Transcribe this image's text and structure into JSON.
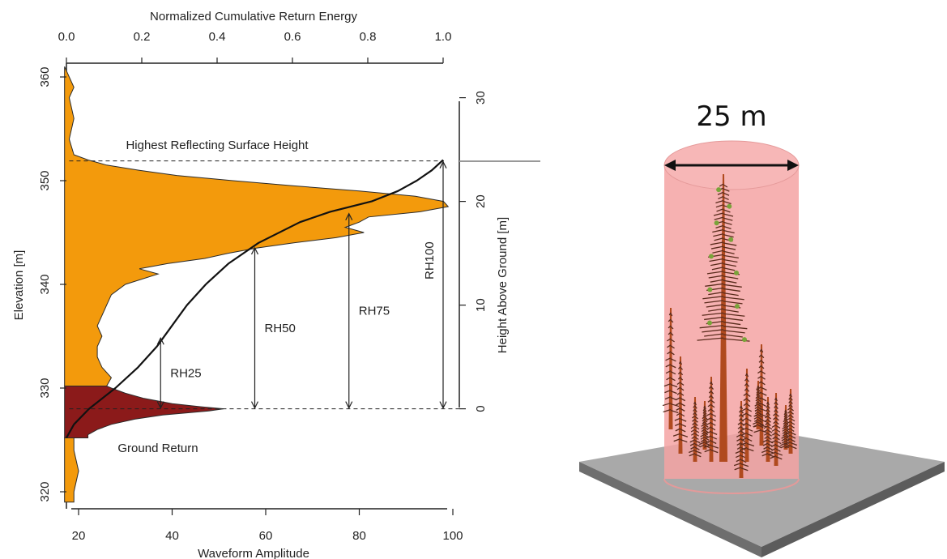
{
  "chart_data": {
    "type": "area",
    "top_axis": {
      "label": "Normalized Cumulative Return Energy",
      "range": [
        0.0,
        1.0
      ],
      "ticks": [
        "0.0",
        "0.2",
        "0.4",
        "0.6",
        "0.8",
        "1.0"
      ]
    },
    "bottom_axis": {
      "label": "Waveform Amplitude",
      "range": [
        20,
        100
      ],
      "ticks": [
        "20",
        "40",
        "60",
        "80",
        "100"
      ]
    },
    "left_axis": {
      "label": "Elevation [m]",
      "range": [
        319,
        361
      ],
      "ticks": [
        "320",
        "330",
        "340",
        "350",
        "360"
      ]
    },
    "right_axis": {
      "label": "Height Above Ground [m]",
      "range": [
        0,
        30
      ],
      "ticks": [
        "0",
        "10",
        "20",
        "30"
      ]
    },
    "ground_elevation": 328,
    "canopy_waveform": {
      "elevation": [
        361,
        359,
        358,
        356,
        354,
        352.5,
        352,
        351.5,
        351,
        350.5,
        350,
        349.5,
        349,
        348.5,
        348,
        347.5,
        347,
        346.5,
        346,
        345.5,
        345,
        344.5,
        344,
        343.5,
        343,
        342.5,
        342,
        341.5,
        341,
        340,
        339,
        338,
        337,
        336,
        335,
        334,
        333,
        332,
        331,
        330.2
      ],
      "amplitude": [
        17,
        19,
        18,
        19,
        18,
        19,
        22,
        26,
        33,
        41,
        53,
        66,
        80,
        92,
        98,
        99,
        93,
        82,
        80,
        77,
        81,
        75,
        66,
        58,
        52,
        47,
        39,
        33,
        37,
        30,
        27,
        26,
        25,
        24,
        25,
        24,
        24,
        25,
        27,
        26
      ]
    },
    "ground_waveform": {
      "elevation": [
        330.2,
        330,
        329.5,
        329,
        328.5,
        328.2,
        328,
        327.8,
        327.4,
        327,
        326.5,
        326,
        325.5,
        325.2
      ],
      "amplitude": [
        26,
        27,
        30,
        34,
        40,
        46,
        51,
        48,
        38,
        32,
        27,
        24,
        22,
        22
      ]
    },
    "lower_tail": {
      "elevation": [
        325.2,
        324,
        322,
        320,
        319
      ],
      "amplitude": [
        19,
        19,
        20,
        19,
        19
      ]
    },
    "cumulative_energy": {
      "elevation": [
        325.2,
        326.5,
        328,
        330,
        332,
        334,
        336,
        338,
        340,
        342,
        344,
        346,
        347,
        348,
        349,
        350,
        351,
        352
      ],
      "energy": [
        0.0,
        0.02,
        0.06,
        0.13,
        0.19,
        0.24,
        0.28,
        0.32,
        0.37,
        0.43,
        0.51,
        0.62,
        0.7,
        0.81,
        0.88,
        0.93,
        0.97,
        1.0
      ]
    },
    "relative_heights": [
      {
        "label": "RH25",
        "elevation": 334.9,
        "energy": 0.25
      },
      {
        "label": "RH50",
        "elevation": 343.6,
        "energy": 0.5
      },
      {
        "label": "RH75",
        "elevation": 346.9,
        "energy": 0.75
      },
      {
        "label": "RH100",
        "elevation": 351.9,
        "energy": 1.0
      }
    ],
    "annotations": {
      "highest_surface": "Highest Reflecting Surface Height",
      "highest_elevation": 351.9,
      "ground_return": "Ground Return"
    },
    "colors": {
      "canopy": "#f39a0c",
      "ground": "#8b1a1a",
      "curve": "#111111"
    }
  },
  "illustration": {
    "scale_label": "25 m",
    "colors": {
      "cylinder": "#f4a3a3",
      "cylinder_edge": "#d88b8b",
      "ground_plate_top": "#a9a9a9",
      "ground_plate_side": "#6e6e6e",
      "trunk": "#b04a1e",
      "foliage": "#5a2b1c",
      "needle_green": "#7aa33a"
    }
  }
}
